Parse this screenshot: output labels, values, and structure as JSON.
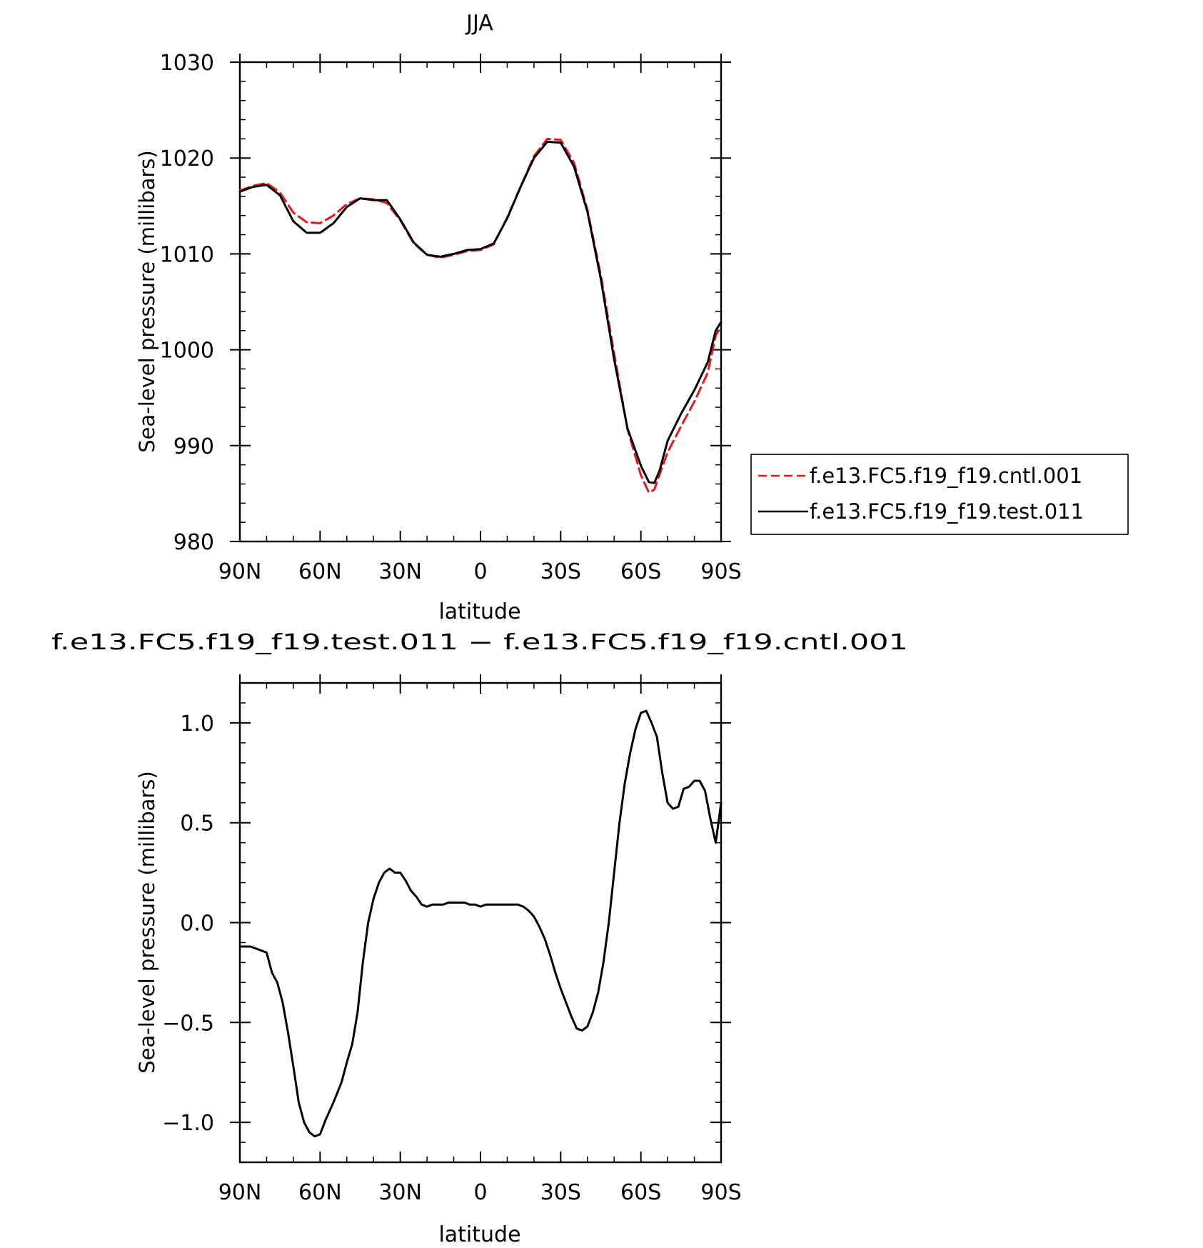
{
  "chart_data": [
    {
      "type": "line",
      "title": "JJA",
      "xlabel": "latitude",
      "ylabel": "Sea-level pressure (millibars)",
      "xlim": [
        90,
        -90
      ],
      "ylim": [
        980,
        1030
      ],
      "x_tick_values": [
        90,
        60,
        30,
        0,
        -30,
        -60,
        -90
      ],
      "x_tick_labels": [
        "90N",
        "60N",
        "30N",
        "0",
        "30S",
        "60S",
        "90S"
      ],
      "y_ticks": [
        980,
        990,
        1000,
        1010,
        1020,
        1030
      ],
      "y_tick_labels": [
        "980",
        "990",
        "1000",
        "1010",
        "1020",
        "1030"
      ],
      "grid": false,
      "legend_position": "right",
      "series": [
        {
          "name": "f.e13.FC5.f19_f19.cntl.001",
          "color": "#e41a1c",
          "dash": "dashed",
          "x": [
            90,
            85,
            80,
            75,
            70,
            65,
            60,
            55,
            50,
            45,
            40,
            35,
            30,
            25,
            20,
            15,
            10,
            5,
            0,
            -5,
            -10,
            -15,
            -20,
            -25,
            -30,
            -35,
            -40,
            -45,
            -50,
            -55,
            -60,
            -63,
            -65,
            -67,
            -70,
            -75,
            -80,
            -85,
            -88,
            -90
          ],
          "y": [
            1016.6,
            1017.1,
            1017.4,
            1016.4,
            1014.3,
            1013.3,
            1013.2,
            1014.0,
            1015.2,
            1015.8,
            1015.7,
            1015.3,
            1013.5,
            1011.1,
            1009.9,
            1009.6,
            1009.9,
            1010.3,
            1010.4,
            1011.0,
            1013.8,
            1017.0,
            1020.2,
            1022.0,
            1021.9,
            1019.5,
            1014.6,
            1007.8,
            999.6,
            991.7,
            986.9,
            985.1,
            985.4,
            987.0,
            989.3,
            992.0,
            994.6,
            997.6,
            1001.5,
            1002.4
          ]
        },
        {
          "name": "f.e13.FC5.f19_f19.test.011",
          "color": "#000000",
          "dash": "solid",
          "x": [
            90,
            85,
            80,
            75,
            70,
            65,
            60,
            55,
            50,
            45,
            40,
            35,
            30,
            25,
            20,
            15,
            10,
            5,
            0,
            -5,
            -10,
            -15,
            -20,
            -25,
            -30,
            -35,
            -40,
            -45,
            -50,
            -55,
            -60,
            -63,
            -65,
            -67,
            -70,
            -75,
            -80,
            -85,
            -88,
            -90
          ],
          "y": [
            1016.5,
            1017.0,
            1017.2,
            1016.1,
            1013.4,
            1012.2,
            1012.2,
            1013.2,
            1014.9,
            1015.8,
            1015.6,
            1015.6,
            1013.6,
            1011.2,
            1009.9,
            1009.7,
            1010.0,
            1010.4,
            1010.5,
            1011.1,
            1013.7,
            1017.0,
            1020.0,
            1021.7,
            1021.6,
            1019.1,
            1014.4,
            1007.4,
            999.0,
            991.8,
            987.9,
            986.2,
            986.1,
            987.4,
            990.5,
            993.3,
            995.8,
            998.7,
            1002.0,
            1002.9
          ]
        }
      ]
    },
    {
      "type": "line",
      "title": "f.e13.FC5.f19_f19.test.011 − f.e13.FC5.f19_f19.cntl.001",
      "xlabel": "latitude",
      "ylabel": "Sea-level pressure (millibars)",
      "xlim": [
        90,
        -90
      ],
      "ylim": [
        -1.2,
        1.2
      ],
      "x_tick_values": [
        90,
        60,
        30,
        0,
        -30,
        -60,
        -90
      ],
      "x_tick_labels": [
        "90N",
        "60N",
        "30N",
        "0",
        "30S",
        "60S",
        "90S"
      ],
      "y_ticks": [
        -1.0,
        -0.5,
        0.0,
        0.5,
        1.0
      ],
      "y_tick_labels": [
        "−1.0",
        "−0.5",
        "0.0",
        "0.5",
        "1.0"
      ],
      "grid": false,
      "series": [
        {
          "color": "#000000",
          "dash": "solid",
          "x": [
            90,
            86,
            84,
            80,
            78,
            76,
            74,
            72,
            70,
            68,
            66,
            64,
            62,
            60,
            58,
            55,
            52,
            50,
            48,
            46,
            44,
            42,
            40,
            38,
            36,
            34,
            32,
            30,
            28,
            26,
            24,
            22,
            20,
            18,
            16,
            14,
            12,
            10,
            8,
            6,
            4,
            2,
            0,
            -2,
            -4,
            -6,
            -8,
            -10,
            -12,
            -14,
            -16,
            -18,
            -20,
            -22,
            -24,
            -26,
            -28,
            -30,
            -32,
            -34,
            -36,
            -38,
            -40,
            -42,
            -44,
            -46,
            -48,
            -50,
            -52,
            -54,
            -56,
            -58,
            -60,
            -62,
            -64,
            -66,
            -68,
            -70,
            -72,
            -74,
            -76,
            -78,
            -80,
            -82,
            -84,
            -86,
            -88,
            -90
          ],
          "y": [
            -0.12,
            -0.12,
            -0.13,
            -0.15,
            -0.25,
            -0.3,
            -0.4,
            -0.55,
            -0.72,
            -0.9,
            -1.0,
            -1.05,
            -1.07,
            -1.06,
            -0.99,
            -0.9,
            -0.8,
            -0.7,
            -0.61,
            -0.45,
            -0.2,
            0.0,
            0.12,
            0.2,
            0.25,
            0.27,
            0.25,
            0.25,
            0.21,
            0.16,
            0.13,
            0.09,
            0.08,
            0.09,
            0.09,
            0.09,
            0.1,
            0.1,
            0.1,
            0.1,
            0.09,
            0.09,
            0.08,
            0.09,
            0.09,
            0.09,
            0.09,
            0.09,
            0.09,
            0.09,
            0.08,
            0.06,
            0.03,
            -0.02,
            -0.08,
            -0.16,
            -0.25,
            -0.33,
            -0.4,
            -0.47,
            -0.53,
            -0.54,
            -0.52,
            -0.45,
            -0.35,
            -0.2,
            0.0,
            0.25,
            0.5,
            0.7,
            0.85,
            0.97,
            1.05,
            1.06,
            1.0,
            0.93,
            0.75,
            0.6,
            0.57,
            0.58,
            0.67,
            0.68,
            0.71,
            0.71,
            0.66,
            0.52,
            0.4,
            0.6
          ]
        }
      ]
    }
  ],
  "legend_line_labels": [
    "f.e13.FC5.f19_f19.cntl.001",
    "f.e13.FC5.f19_f19.test.011"
  ]
}
